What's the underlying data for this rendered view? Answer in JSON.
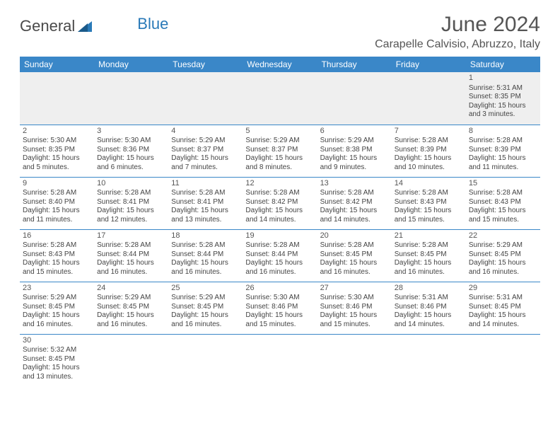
{
  "logo": {
    "text1": "General",
    "text2": "Blue"
  },
  "title": "June 2024",
  "location": "Carapelle Calvisio, Abruzzo, Italy",
  "colors": {
    "header_bg": "#3a87c8",
    "header_text": "#ffffff",
    "border": "#3a87c8",
    "logo_accent": "#2a7ab8",
    "text": "#444444",
    "bg": "#ffffff",
    "empty_bg": "#efefef"
  },
  "weekdays": [
    "Sunday",
    "Monday",
    "Tuesday",
    "Wednesday",
    "Thursday",
    "Friday",
    "Saturday"
  ],
  "weeks": [
    [
      null,
      null,
      null,
      null,
      null,
      null,
      {
        "n": "1",
        "sr": "5:31 AM",
        "ss": "8:35 PM",
        "dl": "15 hours and 3 minutes."
      }
    ],
    [
      {
        "n": "2",
        "sr": "5:30 AM",
        "ss": "8:35 PM",
        "dl": "15 hours and 5 minutes."
      },
      {
        "n": "3",
        "sr": "5:30 AM",
        "ss": "8:36 PM",
        "dl": "15 hours and 6 minutes."
      },
      {
        "n": "4",
        "sr": "5:29 AM",
        "ss": "8:37 PM",
        "dl": "15 hours and 7 minutes."
      },
      {
        "n": "5",
        "sr": "5:29 AM",
        "ss": "8:37 PM",
        "dl": "15 hours and 8 minutes."
      },
      {
        "n": "6",
        "sr": "5:29 AM",
        "ss": "8:38 PM",
        "dl": "15 hours and 9 minutes."
      },
      {
        "n": "7",
        "sr": "5:28 AM",
        "ss": "8:39 PM",
        "dl": "15 hours and 10 minutes."
      },
      {
        "n": "8",
        "sr": "5:28 AM",
        "ss": "8:39 PM",
        "dl": "15 hours and 11 minutes."
      }
    ],
    [
      {
        "n": "9",
        "sr": "5:28 AM",
        "ss": "8:40 PM",
        "dl": "15 hours and 11 minutes."
      },
      {
        "n": "10",
        "sr": "5:28 AM",
        "ss": "8:41 PM",
        "dl": "15 hours and 12 minutes."
      },
      {
        "n": "11",
        "sr": "5:28 AM",
        "ss": "8:41 PM",
        "dl": "15 hours and 13 minutes."
      },
      {
        "n": "12",
        "sr": "5:28 AM",
        "ss": "8:42 PM",
        "dl": "15 hours and 14 minutes."
      },
      {
        "n": "13",
        "sr": "5:28 AM",
        "ss": "8:42 PM",
        "dl": "15 hours and 14 minutes."
      },
      {
        "n": "14",
        "sr": "5:28 AM",
        "ss": "8:43 PM",
        "dl": "15 hours and 15 minutes."
      },
      {
        "n": "15",
        "sr": "5:28 AM",
        "ss": "8:43 PM",
        "dl": "15 hours and 15 minutes."
      }
    ],
    [
      {
        "n": "16",
        "sr": "5:28 AM",
        "ss": "8:43 PM",
        "dl": "15 hours and 15 minutes."
      },
      {
        "n": "17",
        "sr": "5:28 AM",
        "ss": "8:44 PM",
        "dl": "15 hours and 16 minutes."
      },
      {
        "n": "18",
        "sr": "5:28 AM",
        "ss": "8:44 PM",
        "dl": "15 hours and 16 minutes."
      },
      {
        "n": "19",
        "sr": "5:28 AM",
        "ss": "8:44 PM",
        "dl": "15 hours and 16 minutes."
      },
      {
        "n": "20",
        "sr": "5:28 AM",
        "ss": "8:45 PM",
        "dl": "15 hours and 16 minutes."
      },
      {
        "n": "21",
        "sr": "5:28 AM",
        "ss": "8:45 PM",
        "dl": "15 hours and 16 minutes."
      },
      {
        "n": "22",
        "sr": "5:29 AM",
        "ss": "8:45 PM",
        "dl": "15 hours and 16 minutes."
      }
    ],
    [
      {
        "n": "23",
        "sr": "5:29 AM",
        "ss": "8:45 PM",
        "dl": "15 hours and 16 minutes."
      },
      {
        "n": "24",
        "sr": "5:29 AM",
        "ss": "8:45 PM",
        "dl": "15 hours and 16 minutes."
      },
      {
        "n": "25",
        "sr": "5:29 AM",
        "ss": "8:45 PM",
        "dl": "15 hours and 16 minutes."
      },
      {
        "n": "26",
        "sr": "5:30 AM",
        "ss": "8:46 PM",
        "dl": "15 hours and 15 minutes."
      },
      {
        "n": "27",
        "sr": "5:30 AM",
        "ss": "8:46 PM",
        "dl": "15 hours and 15 minutes."
      },
      {
        "n": "28",
        "sr": "5:31 AM",
        "ss": "8:46 PM",
        "dl": "15 hours and 14 minutes."
      },
      {
        "n": "29",
        "sr": "5:31 AM",
        "ss": "8:45 PM",
        "dl": "15 hours and 14 minutes."
      }
    ],
    [
      {
        "n": "30",
        "sr": "5:32 AM",
        "ss": "8:45 PM",
        "dl": "15 hours and 13 minutes."
      },
      null,
      null,
      null,
      null,
      null,
      null
    ]
  ],
  "labels": {
    "sunrise": "Sunrise:",
    "sunset": "Sunset:",
    "daylight": "Daylight:"
  }
}
